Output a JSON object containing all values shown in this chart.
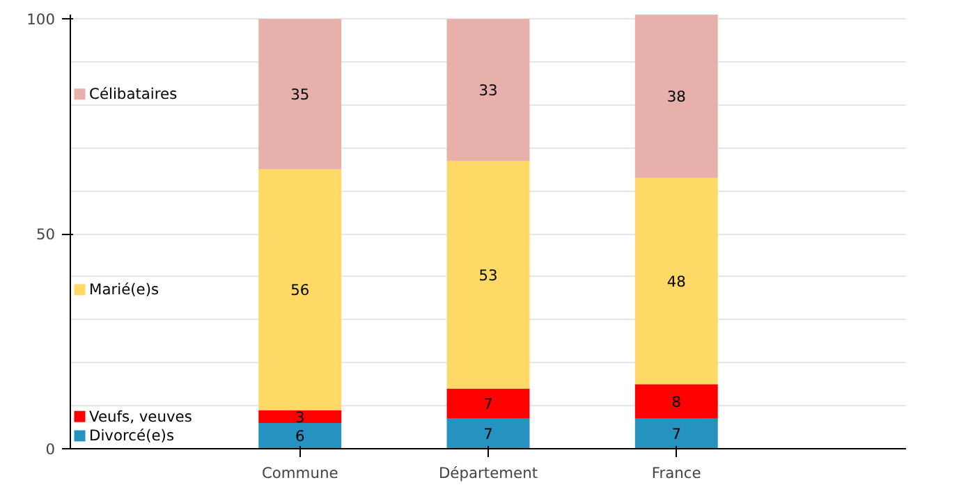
{
  "chart_data": {
    "type": "bar",
    "stacked": true,
    "categories": [
      "Commune",
      "Département",
      "France"
    ],
    "series": [
      {
        "name": "Divorcé(e)s",
        "color": "#2592bf",
        "values": [
          6,
          7,
          7
        ]
      },
      {
        "name": "Veufs, veuves",
        "color": "#ff0000",
        "values": [
          3,
          7,
          8
        ]
      },
      {
        "name": "Marié(e)s",
        "color": "#ffd966",
        "values": [
          56,
          53,
          48
        ]
      },
      {
        "name": "Célibataires",
        "color": "#e8b0aa",
        "values": [
          35,
          33,
          38
        ]
      }
    ],
    "ylim": [
      0,
      101
    ],
    "yticks": [
      0,
      50,
      100
    ],
    "grid": "y",
    "legend": "left",
    "data_labels": true
  }
}
